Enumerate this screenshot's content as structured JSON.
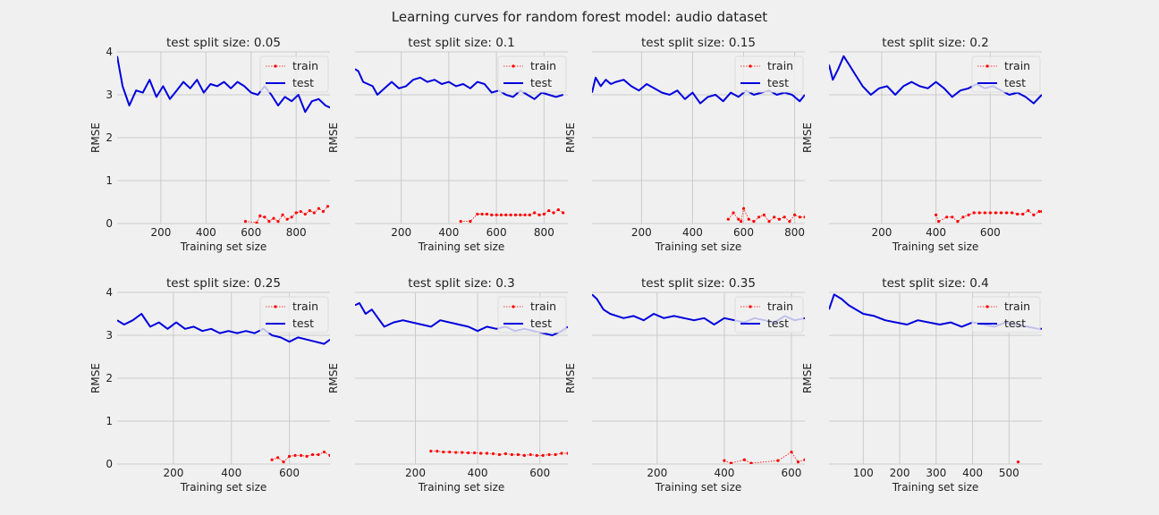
{
  "figure": {
    "title": "Learning curves for random forest model: audio dataset"
  },
  "colors": {
    "train": "#ff0000",
    "test": "#0000dd",
    "grid": "#cbcbcb",
    "background": "#f0f0f0"
  },
  "chart_data": [
    {
      "type": "line",
      "title": "test split size: 0.05",
      "xlabel": "Training set size",
      "ylabel": "RMSE",
      "xlim": [
        6,
        950
      ],
      "ylim": [
        0,
        4
      ],
      "xticks": [
        200,
        400,
        600,
        800
      ],
      "yticks": [
        0,
        1,
        2,
        3,
        4
      ],
      "grid": true,
      "legend": "top-right",
      "series": [
        {
          "name": "train",
          "x": [
            575,
            625,
            640,
            660,
            680,
            700,
            720,
            740,
            760,
            780,
            800,
            820,
            840,
            860,
            880,
            900,
            920,
            940
          ],
          "y": [
            0.05,
            0.02,
            0.18,
            0.15,
            0.05,
            0.12,
            0.05,
            0.2,
            0.1,
            0.15,
            0.25,
            0.28,
            0.22,
            0.3,
            0.25,
            0.35,
            0.28,
            0.4
          ]
        },
        {
          "name": "test",
          "x": [
            6,
            30,
            60,
            90,
            120,
            150,
            180,
            210,
            240,
            270,
            300,
            330,
            360,
            390,
            420,
            450,
            480,
            510,
            540,
            570,
            600,
            630,
            660,
            690,
            720,
            750,
            780,
            810,
            840,
            870,
            900,
            930,
            950
          ],
          "y": [
            3.9,
            3.2,
            2.75,
            3.1,
            3.05,
            3.35,
            2.95,
            3.2,
            2.9,
            3.1,
            3.3,
            3.15,
            3.35,
            3.05,
            3.25,
            3.2,
            3.3,
            3.15,
            3.3,
            3.2,
            3.05,
            3.0,
            3.2,
            3.0,
            2.75,
            2.95,
            2.85,
            3.0,
            2.6,
            2.85,
            2.9,
            2.75,
            2.7
          ]
        }
      ]
    },
    {
      "type": "line",
      "title": "test split size: 0.1",
      "xlabel": "Training set size",
      "ylabel": "RMSE",
      "xlim": [
        6,
        900
      ],
      "ylim": [
        0,
        4
      ],
      "xticks": [
        200,
        400,
        600,
        800
      ],
      "yticks": [
        0,
        1,
        2,
        3,
        4
      ],
      "grid": true,
      "legend": "top-right",
      "series": [
        {
          "name": "train",
          "x": [
            450,
            490,
            520,
            540,
            560,
            580,
            600,
            620,
            640,
            660,
            680,
            700,
            720,
            740,
            760,
            780,
            800,
            820,
            840,
            860,
            880
          ],
          "y": [
            0.05,
            0.05,
            0.22,
            0.22,
            0.22,
            0.2,
            0.2,
            0.2,
            0.2,
            0.2,
            0.2,
            0.2,
            0.2,
            0.2,
            0.25,
            0.2,
            0.22,
            0.3,
            0.25,
            0.32,
            0.25
          ]
        },
        {
          "name": "test",
          "x": [
            6,
            20,
            40,
            60,
            80,
            100,
            130,
            160,
            190,
            220,
            250,
            280,
            310,
            340,
            370,
            400,
            430,
            460,
            490,
            520,
            550,
            580,
            610,
            640,
            670,
            700,
            730,
            760,
            790,
            820,
            850,
            880
          ],
          "y": [
            3.6,
            3.55,
            3.3,
            3.25,
            3.2,
            3.0,
            3.15,
            3.3,
            3.15,
            3.2,
            3.35,
            3.4,
            3.3,
            3.35,
            3.25,
            3.3,
            3.2,
            3.25,
            3.15,
            3.3,
            3.25,
            3.05,
            3.1,
            3.0,
            2.95,
            3.1,
            3.0,
            2.9,
            3.05,
            3.0,
            2.95,
            3.0
          ]
        }
      ]
    },
    {
      "type": "line",
      "title": "test split size: 0.15",
      "xlabel": "Training set size",
      "ylabel": "RMSE",
      "xlim": [
        6,
        840
      ],
      "ylim": [
        0,
        4
      ],
      "xticks": [
        200,
        400,
        600,
        800
      ],
      "yticks": [
        0,
        1,
        2,
        3,
        4
      ],
      "grid": true,
      "legend": "top-right",
      "series": [
        {
          "name": "train",
          "x": [
            540,
            560,
            580,
            590,
            600,
            620,
            640,
            660,
            680,
            700,
            720,
            740,
            760,
            780,
            800,
            820,
            840
          ],
          "y": [
            0.1,
            0.25,
            0.1,
            0.05,
            0.35,
            0.1,
            0.05,
            0.15,
            0.2,
            0.05,
            0.15,
            0.1,
            0.15,
            0.05,
            0.2,
            0.15,
            0.15
          ]
        },
        {
          "name": "test",
          "x": [
            6,
            20,
            40,
            60,
            80,
            100,
            130,
            160,
            190,
            220,
            250,
            280,
            310,
            340,
            370,
            400,
            430,
            460,
            490,
            520,
            550,
            580,
            610,
            640,
            670,
            700,
            730,
            760,
            790,
            820,
            840
          ],
          "y": [
            3.05,
            3.4,
            3.2,
            3.35,
            3.25,
            3.3,
            3.35,
            3.2,
            3.1,
            3.25,
            3.15,
            3.05,
            3.0,
            3.1,
            2.9,
            3.05,
            2.8,
            2.95,
            3.0,
            2.85,
            3.05,
            2.95,
            3.1,
            3.0,
            3.05,
            3.1,
            3.0,
            3.05,
            3.0,
            2.85,
            3.0
          ]
        }
      ]
    },
    {
      "type": "line",
      "title": "test split size: 0.2",
      "xlabel": "Training set size",
      "ylabel": "RMSE",
      "xlim": [
        6,
        790
      ],
      "ylim": [
        0,
        4
      ],
      "xticks": [
        200,
        400,
        600
      ],
      "yticks": [
        0,
        1,
        2,
        3,
        4
      ],
      "grid": true,
      "legend": "top-right",
      "series": [
        {
          "name": "train",
          "x": [
            400,
            410,
            440,
            460,
            480,
            500,
            520,
            540,
            560,
            580,
            600,
            620,
            640,
            660,
            680,
            700,
            720,
            740,
            760,
            780,
            790
          ],
          "y": [
            0.2,
            0.05,
            0.15,
            0.15,
            0.05,
            0.15,
            0.2,
            0.25,
            0.25,
            0.25,
            0.25,
            0.25,
            0.25,
            0.25,
            0.25,
            0.22,
            0.22,
            0.3,
            0.2,
            0.28,
            0.28
          ]
        },
        {
          "name": "test",
          "x": [
            6,
            20,
            40,
            60,
            80,
            100,
            130,
            160,
            190,
            220,
            250,
            280,
            310,
            340,
            370,
            400,
            430,
            460,
            490,
            520,
            550,
            580,
            610,
            640,
            670,
            700,
            730,
            760,
            790
          ],
          "y": [
            3.7,
            3.35,
            3.6,
            3.9,
            3.7,
            3.5,
            3.2,
            3.0,
            3.15,
            3.2,
            3.0,
            3.2,
            3.3,
            3.2,
            3.15,
            3.3,
            3.15,
            2.95,
            3.1,
            3.15,
            3.25,
            3.15,
            3.2,
            3.1,
            3.0,
            3.05,
            2.95,
            2.8,
            3.0
          ]
        }
      ]
    },
    {
      "type": "line",
      "title": "test split size: 0.25",
      "xlabel": "Training set size",
      "ylabel": "RMSE",
      "xlim": [
        6,
        740
      ],
      "ylim": [
        0,
        4
      ],
      "xticks": [
        200,
        400,
        600
      ],
      "yticks": [
        0,
        1,
        2,
        3,
        4
      ],
      "grid": true,
      "legend": "top-right",
      "series": [
        {
          "name": "train",
          "x": [
            540,
            560,
            580,
            600,
            620,
            640,
            660,
            680,
            700,
            720,
            740
          ],
          "y": [
            0.1,
            0.15,
            0.05,
            0.18,
            0.2,
            0.2,
            0.18,
            0.22,
            0.22,
            0.28,
            0.2
          ]
        },
        {
          "name": "test",
          "x": [
            6,
            30,
            60,
            90,
            120,
            150,
            180,
            210,
            240,
            270,
            300,
            330,
            360,
            390,
            420,
            450,
            480,
            510,
            540,
            570,
            600,
            630,
            660,
            690,
            720,
            740
          ],
          "y": [
            3.35,
            3.25,
            3.35,
            3.5,
            3.2,
            3.3,
            3.15,
            3.3,
            3.15,
            3.2,
            3.1,
            3.15,
            3.05,
            3.1,
            3.05,
            3.1,
            3.05,
            3.15,
            3.0,
            2.95,
            2.85,
            2.95,
            2.9,
            2.85,
            2.8,
            2.9
          ]
        }
      ]
    },
    {
      "type": "line",
      "title": "test split size: 0.3",
      "xlabel": "Training set size",
      "ylabel": "RMSE",
      "xlim": [
        6,
        690
      ],
      "ylim": [
        0,
        4
      ],
      "xticks": [
        200,
        400,
        600
      ],
      "yticks": [
        0,
        1,
        2,
        3,
        4
      ],
      "grid": true,
      "legend": "top-right",
      "series": [
        {
          "name": "train",
          "x": [
            250,
            270,
            290,
            310,
            330,
            350,
            370,
            390,
            410,
            430,
            450,
            470,
            490,
            510,
            530,
            550,
            570,
            590,
            610,
            630,
            650,
            670,
            690
          ],
          "y": [
            0.3,
            0.3,
            0.28,
            0.28,
            0.27,
            0.27,
            0.26,
            0.26,
            0.25,
            0.25,
            0.24,
            0.22,
            0.24,
            0.22,
            0.22,
            0.2,
            0.22,
            0.2,
            0.2,
            0.22,
            0.22,
            0.25,
            0.25
          ]
        },
        {
          "name": "test",
          "x": [
            6,
            20,
            40,
            60,
            80,
            100,
            130,
            160,
            190,
            220,
            250,
            280,
            310,
            340,
            370,
            400,
            430,
            460,
            490,
            520,
            550,
            580,
            610,
            640,
            670,
            690
          ],
          "y": [
            3.7,
            3.75,
            3.5,
            3.6,
            3.4,
            3.2,
            3.3,
            3.35,
            3.3,
            3.25,
            3.2,
            3.35,
            3.3,
            3.25,
            3.2,
            3.1,
            3.2,
            3.15,
            3.2,
            3.1,
            3.15,
            3.1,
            3.05,
            3.0,
            3.1,
            3.2
          ]
        }
      ]
    },
    {
      "type": "line",
      "title": "test split size: 0.35",
      "xlabel": "Training set size",
      "ylabel": "RMSE",
      "xlim": [
        6,
        640
      ],
      "ylim": [
        0,
        4
      ],
      "xticks": [
        200,
        400,
        600
      ],
      "yticks": [
        0,
        1,
        2,
        3,
        4
      ],
      "grid": true,
      "legend": "top-right",
      "series": [
        {
          "name": "train",
          "x": [
            400,
            420,
            460,
            480,
            560,
            600,
            620,
            640
          ],
          "y": [
            0.08,
            0.02,
            0.1,
            0.02,
            0.08,
            0.28,
            0.05,
            0.1
          ]
        },
        {
          "name": "test",
          "x": [
            6,
            20,
            40,
            60,
            80,
            100,
            130,
            160,
            190,
            220,
            250,
            280,
            310,
            340,
            370,
            400,
            430,
            460,
            490,
            520,
            550,
            580,
            610,
            640
          ],
          "y": [
            3.95,
            3.85,
            3.6,
            3.5,
            3.45,
            3.4,
            3.45,
            3.35,
            3.5,
            3.4,
            3.45,
            3.4,
            3.35,
            3.4,
            3.25,
            3.4,
            3.35,
            3.3,
            3.4,
            3.35,
            3.3,
            3.45,
            3.35,
            3.4
          ]
        }
      ]
    },
    {
      "type": "line",
      "title": "test split size: 0.4",
      "xlabel": "Training set size",
      "ylabel": "RMSE",
      "xlim": [
        6,
        590
      ],
      "ylim": [
        0,
        4
      ],
      "xticks": [
        100,
        200,
        300,
        400,
        500
      ],
      "yticks": [
        0,
        1,
        2,
        3,
        4
      ],
      "grid": true,
      "legend": "top-right",
      "series": [
        {
          "name": "train",
          "x": [
            525
          ],
          "y": [
            0.05
          ]
        },
        {
          "name": "test",
          "x": [
            6,
            20,
            40,
            60,
            80,
            100,
            130,
            160,
            190,
            220,
            250,
            280,
            310,
            340,
            370,
            400,
            430,
            460,
            490,
            520,
            550,
            580,
            590
          ],
          "y": [
            3.6,
            3.95,
            3.85,
            3.7,
            3.6,
            3.5,
            3.45,
            3.35,
            3.3,
            3.25,
            3.35,
            3.3,
            3.25,
            3.3,
            3.2,
            3.3,
            3.25,
            3.2,
            3.3,
            3.25,
            3.2,
            3.15,
            3.15
          ]
        }
      ]
    }
  ]
}
